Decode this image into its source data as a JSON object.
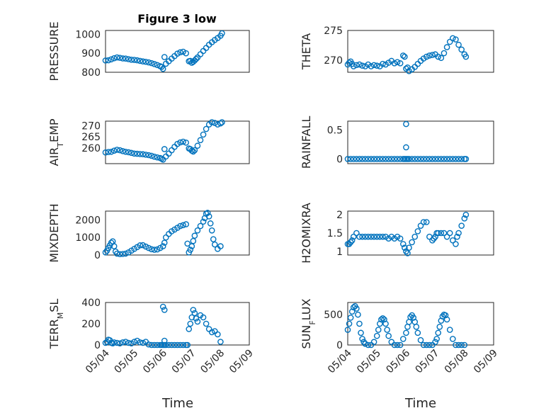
{
  "figure": {
    "title": "Figure 3 low",
    "marker_color": "#0072bd",
    "xtick_labels": [
      "05/04",
      "05/05",
      "05/06",
      "05/07",
      "05/08",
      "05/09"
    ],
    "xlabel": "Time"
  },
  "chart_data": [
    {
      "type": "scatter",
      "ylabel": "PRESSURE",
      "xlim": [
        4,
        9
      ],
      "ylim": [
        800,
        1020
      ],
      "yticks": [
        800,
        900,
        1000
      ],
      "minor_y": 20,
      "grid": true,
      "x": [
        4.0,
        4.1,
        4.2,
        4.3,
        4.4,
        4.5,
        4.6,
        4.7,
        4.8,
        4.9,
        5.0,
        5.1,
        5.2,
        5.3,
        5.4,
        5.5,
        5.6,
        5.7,
        5.8,
        5.9,
        5.95,
        6.0,
        6.05,
        6.1,
        6.2,
        6.3,
        6.4,
        6.5,
        6.6,
        6.7,
        6.8,
        6.9,
        6.95,
        7.0,
        7.05,
        7.1,
        7.15,
        7.2,
        7.3,
        7.4,
        7.5,
        7.6,
        7.7,
        7.8,
        7.9,
        8.0,
        8.05
      ],
      "y": [
        862,
        863,
        868,
        874,
        878,
        876,
        873,
        872,
        869,
        866,
        865,
        863,
        860,
        857,
        855,
        852,
        848,
        843,
        838,
        832,
        828,
        818,
        880,
        845,
        858,
        872,
        885,
        898,
        905,
        908,
        900,
        858,
        860,
        850,
        855,
        862,
        870,
        878,
        895,
        912,
        928,
        945,
        958,
        970,
        980,
        992,
        1005
      ]
    },
    {
      "type": "scatter",
      "ylabel": "THETA",
      "xlim": [
        4,
        9
      ],
      "ylim": [
        268,
        275
      ],
      "yticks": [
        270,
        275
      ],
      "minor_y": 1,
      "grid": true,
      "x": [
        4.0,
        4.05,
        4.1,
        4.15,
        4.2,
        4.3,
        4.4,
        4.5,
        4.6,
        4.7,
        4.8,
        4.9,
        5.0,
        5.1,
        5.2,
        5.3,
        5.4,
        5.5,
        5.6,
        5.7,
        5.8,
        5.9,
        5.95,
        6.0,
        6.05,
        6.1,
        6.2,
        6.3,
        6.4,
        6.5,
        6.6,
        6.7,
        6.8,
        6.9,
        7.0,
        7.1,
        7.2,
        7.3,
        7.4,
        7.5,
        7.6,
        7.7,
        7.8,
        7.9,
        8.0,
        8.05
      ],
      "y": [
        269.3,
        269.6,
        269.8,
        269.4,
        269.0,
        269.2,
        269.3,
        269.1,
        269.0,
        269.3,
        269.0,
        269.2,
        269.1,
        269.0,
        269.4,
        269.3,
        269.6,
        269.9,
        269.5,
        269.7,
        269.5,
        270.8,
        270.6,
        268.6,
        268.8,
        268.2,
        268.5,
        268.9,
        269.4,
        269.9,
        270.3,
        270.6,
        270.8,
        270.9,
        271.0,
        270.6,
        270.4,
        271.2,
        272.2,
        273.1,
        273.7,
        273.5,
        272.6,
        271.8,
        271.0,
        270.6
      ]
    },
    {
      "type": "scatter",
      "ylabel": "AIR_TEMP",
      "xlim": [
        4,
        9
      ],
      "ylim": [
        253,
        272
      ],
      "yticks": [
        260,
        265,
        270
      ],
      "minor_y": 1,
      "grid": true,
      "x": [
        4.0,
        4.1,
        4.2,
        4.3,
        4.4,
        4.5,
        4.6,
        4.7,
        4.8,
        4.9,
        5.0,
        5.1,
        5.2,
        5.3,
        5.4,
        5.5,
        5.6,
        5.7,
        5.8,
        5.9,
        5.95,
        6.0,
        6.05,
        6.1,
        6.2,
        6.3,
        6.4,
        6.5,
        6.6,
        6.7,
        6.8,
        6.9,
        6.95,
        7.0,
        7.05,
        7.1,
        7.2,
        7.3,
        7.4,
        7.5,
        7.6,
        7.7,
        7.8,
        7.9,
        8.0,
        8.05
      ],
      "y": [
        258.0,
        258.2,
        258.3,
        258.8,
        259.2,
        259.0,
        258.6,
        258.3,
        258.1,
        257.8,
        257.5,
        257.4,
        257.3,
        257.2,
        257.0,
        256.8,
        256.5,
        256.1,
        255.8,
        255.5,
        255.2,
        254.8,
        259.5,
        256.2,
        257.5,
        259.0,
        260.5,
        261.8,
        262.5,
        262.8,
        262.4,
        259.8,
        259.5,
        258.8,
        258.4,
        259.0,
        261.0,
        263.5,
        266.0,
        268.5,
        270.5,
        271.5,
        271.2,
        270.5,
        271.0,
        271.5
      ]
    },
    {
      "type": "scatter",
      "ylabel": "RAINFALL",
      "xlim": [
        4,
        9
      ],
      "ylim": [
        -0.08,
        0.65
      ],
      "yticks": [
        0,
        0.5
      ],
      "minor_y": 0.1,
      "grid": true,
      "x": [
        4.0,
        4.1,
        4.2,
        4.3,
        4.4,
        4.5,
        4.6,
        4.7,
        4.8,
        4.9,
        5.0,
        5.1,
        5.2,
        5.3,
        5.4,
        5.5,
        5.6,
        5.7,
        5.8,
        5.9,
        5.95,
        6.0,
        6.05,
        6.1,
        6.2,
        6.3,
        6.4,
        6.5,
        6.6,
        6.7,
        6.8,
        6.9,
        7.0,
        7.1,
        7.2,
        7.3,
        7.4,
        7.5,
        7.6,
        7.7,
        7.8,
        7.9,
        8.0,
        8.05,
        6.0,
        6.0
      ],
      "y": [
        0,
        0,
        0,
        0,
        0,
        0,
        0,
        0,
        0,
        0,
        0,
        0,
        0,
        0,
        0,
        0,
        0,
        0,
        0,
        0,
        0,
        0,
        0,
        0,
        0,
        0,
        0,
        0,
        0,
        0,
        0,
        0,
        0,
        0,
        0,
        0,
        0,
        0,
        0,
        0,
        0,
        0,
        0,
        0,
        0.6,
        0.2
      ]
    },
    {
      "type": "scatter",
      "ylabel": "MIXDEPTH",
      "xlim": [
        4,
        9
      ],
      "ylim": [
        0,
        2500
      ],
      "yticks": [
        0,
        1000,
        2000
      ],
      "minor_y": 500,
      "grid": true,
      "x": [
        4.0,
        4.05,
        4.1,
        4.15,
        4.2,
        4.25,
        4.3,
        4.35,
        4.4,
        4.5,
        4.6,
        4.7,
        4.8,
        4.9,
        5.0,
        5.1,
        5.2,
        5.3,
        5.4,
        5.5,
        5.6,
        5.7,
        5.8,
        5.9,
        6.0,
        6.05,
        6.1,
        6.2,
        6.3,
        6.4,
        6.5,
        6.6,
        6.7,
        6.8,
        6.85,
        6.9,
        6.95,
        7.0,
        7.05,
        7.1,
        7.2,
        7.3,
        7.4,
        7.45,
        7.5,
        7.55,
        7.6,
        7.65,
        7.7,
        7.75,
        7.8,
        7.9,
        8.0
      ],
      "y": [
        150,
        250,
        400,
        550,
        700,
        780,
        500,
        200,
        80,
        50,
        60,
        80,
        150,
        250,
        350,
        450,
        550,
        560,
        480,
        400,
        330,
        300,
        320,
        400,
        500,
        700,
        1000,
        1200,
        1350,
        1450,
        1550,
        1650,
        1700,
        1750,
        650,
        150,
        300,
        500,
        800,
        1100,
        1400,
        1650,
        1900,
        2100,
        2350,
        2400,
        2200,
        1800,
        1400,
        900,
        600,
        350,
        500
      ]
    },
    {
      "type": "scatter",
      "ylabel": "H2OMIXRA",
      "xlim": [
        4,
        9
      ],
      "ylim": [
        0.9,
        2.1
      ],
      "yticks": [
        1,
        1.5,
        2
      ],
      "minor_y": 0.1,
      "grid": true,
      "x": [
        4.0,
        4.05,
        4.1,
        4.15,
        4.2,
        4.3,
        4.4,
        4.5,
        4.6,
        4.7,
        4.8,
        4.9,
        5.0,
        5.1,
        5.2,
        5.3,
        5.4,
        5.5,
        5.6,
        5.7,
        5.8,
        5.9,
        5.95,
        6.0,
        6.05,
        6.1,
        6.2,
        6.3,
        6.4,
        6.5,
        6.6,
        6.7,
        6.8,
        6.9,
        6.95,
        7.0,
        7.05,
        7.1,
        7.2,
        7.3,
        7.4,
        7.5,
        7.6,
        7.7,
        7.75,
        7.8,
        7.9,
        8.0,
        8.05
      ],
      "y": [
        1.2,
        1.2,
        1.25,
        1.3,
        1.4,
        1.5,
        1.4,
        1.4,
        1.4,
        1.4,
        1.4,
        1.4,
        1.4,
        1.4,
        1.4,
        1.4,
        1.35,
        1.4,
        1.35,
        1.4,
        1.35,
        1.2,
        1.1,
        1.0,
        0.95,
        1.1,
        1.25,
        1.4,
        1.55,
        1.7,
        1.8,
        1.8,
        1.4,
        1.3,
        1.35,
        1.4,
        1.5,
        1.5,
        1.5,
        1.5,
        1.4,
        1.5,
        1.3,
        1.2,
        1.4,
        1.5,
        1.7,
        1.9,
        2.0
      ]
    },
    {
      "type": "scatter",
      "ylabel": "TERR_MSL",
      "xlim": [
        4,
        9
      ],
      "ylim": [
        0,
        400
      ],
      "yticks": [
        0,
        200,
        400
      ],
      "minor_y": 50,
      "grid": true,
      "x": [
        4.0,
        4.05,
        4.1,
        4.15,
        4.2,
        4.25,
        4.3,
        4.4,
        4.5,
        4.6,
        4.7,
        4.8,
        4.9,
        5.0,
        5.1,
        5.2,
        5.3,
        5.4,
        5.5,
        5.6,
        5.7,
        5.8,
        5.9,
        5.95,
        6.0,
        6.05,
        6.1,
        6.2,
        6.3,
        6.4,
        6.5,
        6.6,
        6.7,
        6.8,
        6.85,
        6.9,
        6.95,
        7.0,
        7.05,
        7.1,
        7.15,
        7.2,
        7.3,
        7.4,
        7.5,
        7.6,
        7.7,
        7.8,
        7.9,
        8.0,
        6.0,
        6.05,
        6.05
      ],
      "y": [
        20,
        30,
        50,
        45,
        20,
        15,
        25,
        20,
        15,
        25,
        30,
        20,
        15,
        30,
        40,
        25,
        20,
        30,
        5,
        0,
        0,
        0,
        0,
        0,
        0,
        0,
        0,
        0,
        0,
        0,
        0,
        0,
        0,
        0,
        0,
        150,
        200,
        260,
        330,
        300,
        250,
        220,
        280,
        260,
        200,
        150,
        120,
        130,
        100,
        30,
        360,
        330,
        40
      ]
    },
    {
      "type": "scatter",
      "ylabel": "SUN_FLUX",
      "xlim": [
        4,
        9
      ],
      "ylim": [
        0,
        700
      ],
      "yticks": [
        0,
        500
      ],
      "minor_y": 100,
      "grid": true,
      "x": [
        4.0,
        4.05,
        4.1,
        4.15,
        4.2,
        4.25,
        4.3,
        4.35,
        4.4,
        4.45,
        4.5,
        4.55,
        4.6,
        4.7,
        4.8,
        4.9,
        5.0,
        5.05,
        5.1,
        5.15,
        5.2,
        5.25,
        5.3,
        5.35,
        5.4,
        5.5,
        5.6,
        5.7,
        5.8,
        5.9,
        6.0,
        6.05,
        6.1,
        6.15,
        6.2,
        6.25,
        6.3,
        6.35,
        6.4,
        6.5,
        6.6,
        6.7,
        6.8,
        6.9,
        7.0,
        7.05,
        7.1,
        7.15,
        7.2,
        7.25,
        7.3,
        7.35,
        7.4,
        7.5,
        7.6,
        7.7,
        7.8,
        7.9,
        8.0
      ],
      "y": [
        250,
        350,
        450,
        550,
        620,
        640,
        600,
        500,
        350,
        200,
        100,
        50,
        20,
        0,
        0,
        50,
        150,
        250,
        350,
        420,
        440,
        420,
        350,
        250,
        150,
        50,
        0,
        0,
        0,
        100,
        200,
        300,
        380,
        460,
        490,
        450,
        380,
        300,
        200,
        80,
        0,
        0,
        0,
        0,
        50,
        100,
        200,
        300,
        400,
        470,
        500,
        490,
        420,
        250,
        100,
        0,
        0,
        0,
        0
      ]
    }
  ]
}
